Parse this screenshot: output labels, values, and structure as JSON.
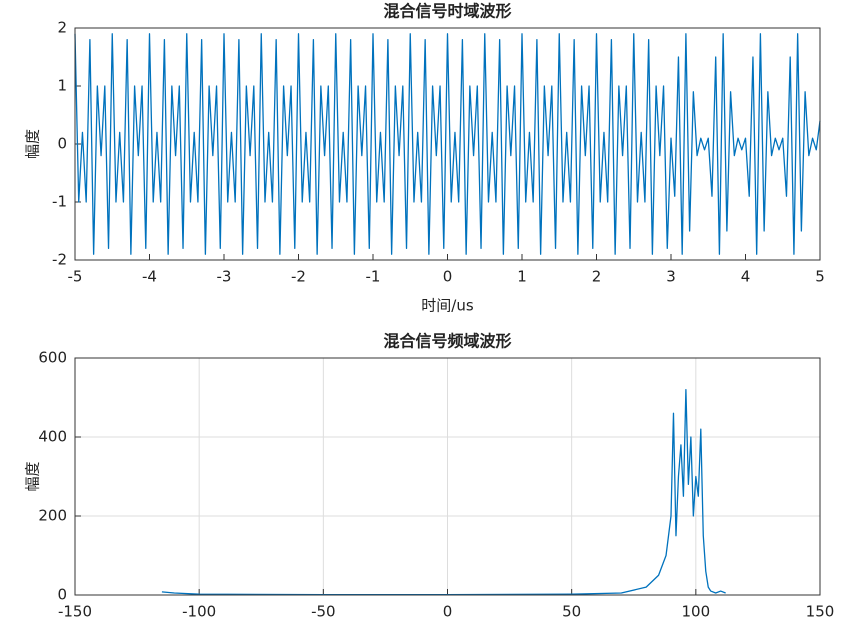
{
  "chart_data": [
    {
      "type": "line",
      "title": "混合信号时域波形",
      "xlabel": "时间/us",
      "ylabel": "幅度",
      "x": [
        -5,
        -4.95,
        -4.9,
        -4.85,
        -4.8,
        -4.75,
        -4.7,
        -4.65,
        -4.6,
        -4.55,
        -4.5,
        -4.45,
        -4.4,
        -4.35,
        -4.3,
        -4.25,
        -4.2,
        -4.15,
        -4.1,
        -4.05,
        -4,
        -3.95,
        -3.9,
        -3.85,
        -3.8,
        -3.75,
        -3.7,
        -3.65,
        -3.6,
        -3.55,
        -3.5,
        -3.45,
        -3.4,
        -3.35,
        -3.3,
        -3.25,
        -3.2,
        -3.15,
        -3.1,
        -3.05,
        -3,
        -2.95,
        -2.9,
        -2.85,
        -2.8,
        -2.75,
        -2.7,
        -2.65,
        -2.6,
        -2.55,
        -2.5,
        -2.45,
        -2.4,
        -2.35,
        -2.3,
        -2.25,
        -2.2,
        -2.15,
        -2.1,
        -2.05,
        -2,
        -1.95,
        -1.9,
        -1.85,
        -1.8,
        -1.75,
        -1.7,
        -1.65,
        -1.6,
        -1.55,
        -1.5,
        -1.45,
        -1.4,
        -1.35,
        -1.3,
        -1.25,
        -1.2,
        -1.15,
        -1.1,
        -1.05,
        -1,
        -0.95,
        -0.9,
        -0.85,
        -0.8,
        -0.75,
        -0.7,
        -0.65,
        -0.6,
        -0.55,
        -0.5,
        -0.45,
        -0.4,
        -0.35,
        -0.3,
        -0.25,
        -0.2,
        -0.15,
        -0.1,
        -0.05,
        0,
        0.05,
        0.1,
        0.15,
        0.2,
        0.25,
        0.3,
        0.35,
        0.4,
        0.45,
        0.5,
        0.55,
        0.6,
        0.65,
        0.7,
        0.75,
        0.8,
        0.85,
        0.9,
        0.95,
        1,
        1.05,
        1.1,
        1.15,
        1.2,
        1.25,
        1.3,
        1.35,
        1.4,
        1.45,
        1.5,
        1.55,
        1.6,
        1.65,
        1.7,
        1.75,
        1.8,
        1.85,
        1.9,
        1.95,
        2,
        2.05,
        2.1,
        2.15,
        2.2,
        2.25,
        2.3,
        2.35,
        2.4,
        2.45,
        2.5,
        2.55,
        2.6,
        2.65,
        2.7,
        2.75,
        2.8,
        2.85,
        2.9,
        2.95,
        3,
        3.05,
        3.1,
        3.15,
        3.2,
        3.25,
        3.3,
        3.35,
        3.4,
        3.45,
        3.5,
        3.55,
        3.6,
        3.65,
        3.7,
        3.75,
        3.8,
        3.85,
        3.9,
        3.95,
        4,
        4.05,
        4.1,
        4.15,
        4.2,
        4.25,
        4.3,
        4.35,
        4.4,
        4.45,
        4.5,
        4.55,
        4.6,
        4.65,
        4.7,
        4.75,
        4.8,
        4.85,
        4.9,
        4.95,
        5
      ],
      "series": [
        {
          "color": "#0072bd",
          "values": [
            1.9,
            -1.0,
            0.2,
            -1.0,
            1.8,
            -1.9,
            1.0,
            -0.2,
            1.0,
            -1.8,
            1.9,
            -1.0,
            0.2,
            -1.0,
            1.8,
            -1.9,
            1.0,
            -0.2,
            1.0,
            -1.8,
            1.9,
            -1.0,
            0.2,
            -1.0,
            1.8,
            -1.9,
            1.0,
            -0.2,
            1.0,
            -1.8,
            1.9,
            -1.0,
            0.2,
            -1.0,
            1.8,
            -1.9,
            1.0,
            -0.2,
            1.0,
            -1.8,
            1.9,
            -1.0,
            0.2,
            -1.0,
            1.8,
            -1.9,
            1.0,
            -0.2,
            1.0,
            -1.8,
            1.9,
            -1.0,
            0.2,
            -1.0,
            1.8,
            -1.9,
            1.0,
            -0.2,
            1.0,
            -1.8,
            1.9,
            -1.0,
            0.2,
            -1.0,
            1.8,
            -1.9,
            1.0,
            -0.2,
            1.0,
            -1.8,
            1.9,
            -1.0,
            0.2,
            -1.0,
            1.8,
            -1.9,
            1.0,
            -0.2,
            1.0,
            -1.8,
            1.9,
            -1.0,
            0.2,
            -1.0,
            1.8,
            -1.9,
            1.0,
            -0.2,
            1.0,
            -1.8,
            1.9,
            -1.0,
            0.2,
            -1.0,
            1.8,
            -1.9,
            1.0,
            -0.2,
            1.0,
            -1.8,
            1.9,
            -1.0,
            0.2,
            -1.0,
            1.8,
            -1.9,
            1.0,
            -0.2,
            1.0,
            -1.8,
            1.9,
            -1.0,
            0.2,
            -1.0,
            1.8,
            -1.9,
            1.0,
            -0.2,
            1.0,
            -1.8,
            1.9,
            -1.0,
            0.2,
            -1.0,
            1.8,
            -1.9,
            1.0,
            -0.2,
            1.0,
            -1.8,
            1.9,
            -1.0,
            0.2,
            -1.0,
            1.8,
            -1.9,
            1.0,
            -0.2,
            1.0,
            -1.8,
            1.9,
            -1.0,
            0.2,
            -1.0,
            1.8,
            -1.9,
            1.0,
            -0.2,
            1.0,
            -1.8,
            1.9,
            -1.0,
            0.2,
            -1.0,
            1.8,
            -1.9,
            1.0,
            -0.2,
            1.0,
            -1.8,
            0.1,
            -0.9,
            1.5,
            -1.9,
            1.9,
            -1.5,
            0.9,
            -0.2,
            0.1,
            -0.1,
            0.1,
            -0.9,
            1.5,
            -1.9,
            1.9,
            -1.5,
            0.9,
            -0.2,
            0.1,
            -0.1,
            0.1,
            -0.9,
            1.5,
            -1.9,
            1.9,
            -1.5,
            0.9,
            -0.2,
            0.1,
            -0.1,
            0.1,
            -0.9,
            1.5,
            -1.9,
            1.9,
            -1.5,
            0.9,
            -0.2,
            0.1,
            -0.1,
            0.4
          ]
        }
      ],
      "xlim": [
        -5,
        5
      ],
      "xticks": [
        -5,
        -4,
        -3,
        -2,
        -1,
        0,
        1,
        2,
        3,
        4,
        5
      ],
      "ylim": [
        -2,
        2
      ],
      "yticks": [
        -2,
        -1,
        0,
        1,
        2
      ],
      "grid": false
    },
    {
      "type": "line",
      "title": "混合信号频域波形",
      "ylabel": "幅度",
      "x": [
        -115,
        -110,
        -100,
        -50,
        0,
        50,
        70,
        80,
        85,
        88,
        90,
        91,
        92,
        93,
        94,
        95,
        96,
        97,
        98,
        99,
        100,
        101,
        102,
        103,
        104,
        105,
        106,
        108,
        110,
        112
      ],
      "series": [
        {
          "color": "#0072bd",
          "values": [
            8,
            5,
            2,
            1,
            1,
            2,
            5,
            20,
            50,
            100,
            200,
            460,
            150,
            300,
            380,
            250,
            520,
            280,
            400,
            200,
            300,
            250,
            420,
            150,
            60,
            20,
            10,
            5,
            10,
            5
          ]
        }
      ],
      "xlim": [
        -150,
        150
      ],
      "xticks": [
        -150,
        -100,
        -50,
        0,
        50,
        100,
        150
      ],
      "ylim": [
        0,
        600
      ],
      "yticks": [
        0,
        200,
        400,
        600
      ],
      "grid": true
    }
  ]
}
